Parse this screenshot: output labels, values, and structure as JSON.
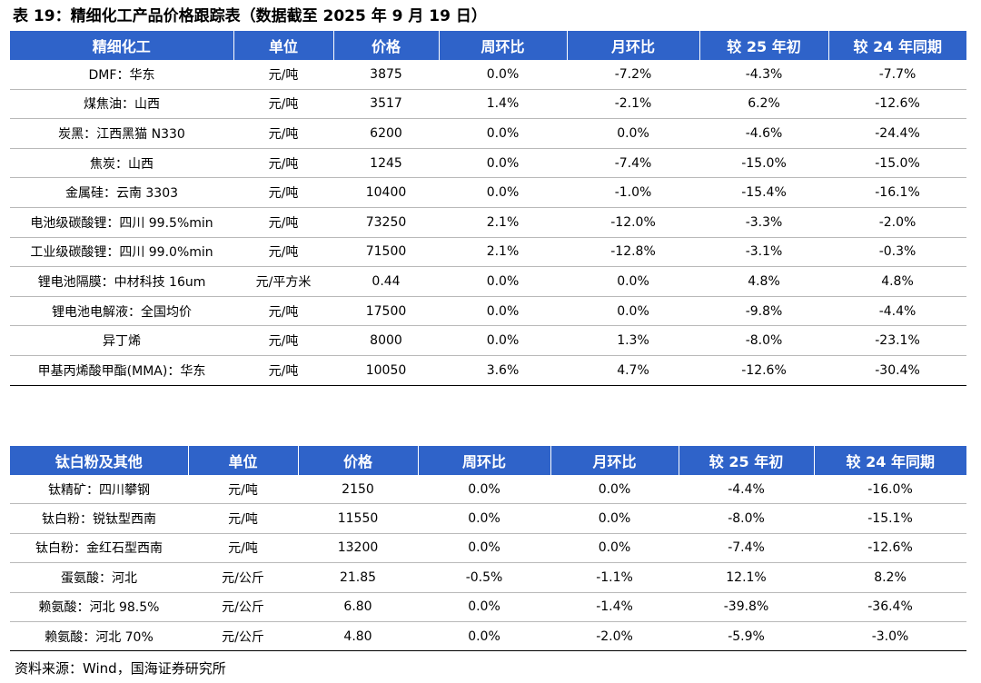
{
  "title": "表 19：精细化工产品价格跟踪表（数据截至 2025 年 9 月 19 日）",
  "colors": {
    "header_bg": "#2f63c9",
    "header_text": "#ffffff"
  },
  "table1": {
    "headers": [
      "精细化工",
      "单位",
      "价格",
      "周环比",
      "月环比",
      "较 25 年初",
      "较 24 年同期"
    ],
    "rows": [
      [
        "DMF：华东",
        "元/吨",
        "3875",
        "0.0%",
        "-7.2%",
        "-4.3%",
        "-7.7%"
      ],
      [
        "煤焦油：山西",
        "元/吨",
        "3517",
        "1.4%",
        "-2.1%",
        "6.2%",
        "-12.6%"
      ],
      [
        "炭黑：江西黑猫 N330",
        "元/吨",
        "6200",
        "0.0%",
        "0.0%",
        "-4.6%",
        "-24.4%"
      ],
      [
        "焦炭：山西",
        "元/吨",
        "1245",
        "0.0%",
        "-7.4%",
        "-15.0%",
        "-15.0%"
      ],
      [
        "金属硅：云南 3303",
        "元/吨",
        "10400",
        "0.0%",
        "-1.0%",
        "-15.4%",
        "-16.1%"
      ],
      [
        "电池级碳酸锂：四川 99.5%min",
        "元/吨",
        "73250",
        "2.1%",
        "-12.0%",
        "-3.3%",
        "-2.0%"
      ],
      [
        "工业级碳酸锂：四川 99.0%min",
        "元/吨",
        "71500",
        "2.1%",
        "-12.8%",
        "-3.1%",
        "-0.3%"
      ],
      [
        "锂电池隔膜：中材科技 16um",
        "元/平方米",
        "0.44",
        "0.0%",
        "0.0%",
        "4.8%",
        "4.8%"
      ],
      [
        "锂电池电解液：全国均价",
        "元/吨",
        "17500",
        "0.0%",
        "0.0%",
        "-9.8%",
        "-4.4%"
      ],
      [
        "异丁烯",
        "元/吨",
        "8000",
        "0.0%",
        "1.3%",
        "-8.0%",
        "-23.1%"
      ],
      [
        "甲基丙烯酸甲酯(MMA)：华东",
        "元/吨",
        "10050",
        "3.6%",
        "4.7%",
        "-12.6%",
        "-30.4%"
      ]
    ]
  },
  "table2": {
    "headers": [
      "钛白粉及其他",
      "单位",
      "价格",
      "周环比",
      "月环比",
      "较 25 年初",
      "较 24 年同期"
    ],
    "rows": [
      [
        "钛精矿：四川攀钢",
        "元/吨",
        "2150",
        "0.0%",
        "0.0%",
        "-4.4%",
        "-16.0%"
      ],
      [
        "钛白粉：锐钛型西南",
        "元/吨",
        "11550",
        "0.0%",
        "0.0%",
        "-8.0%",
        "-15.1%"
      ],
      [
        "钛白粉：金红石型西南",
        "元/吨",
        "13200",
        "0.0%",
        "0.0%",
        "-7.4%",
        "-12.6%"
      ],
      [
        "蛋氨酸：河北",
        "元/公斤",
        "21.85",
        "-0.5%",
        "-1.1%",
        "12.1%",
        "8.2%"
      ],
      [
        "赖氨酸：河北 98.5%",
        "元/公斤",
        "6.80",
        "0.0%",
        "-1.4%",
        "-39.8%",
        "-36.4%"
      ],
      [
        "赖氨酸：河北 70%",
        "元/公斤",
        "4.80",
        "0.0%",
        "-2.0%",
        "-5.9%",
        "-3.0%"
      ]
    ]
  },
  "source": "资料来源：Wind，国海证券研究所"
}
